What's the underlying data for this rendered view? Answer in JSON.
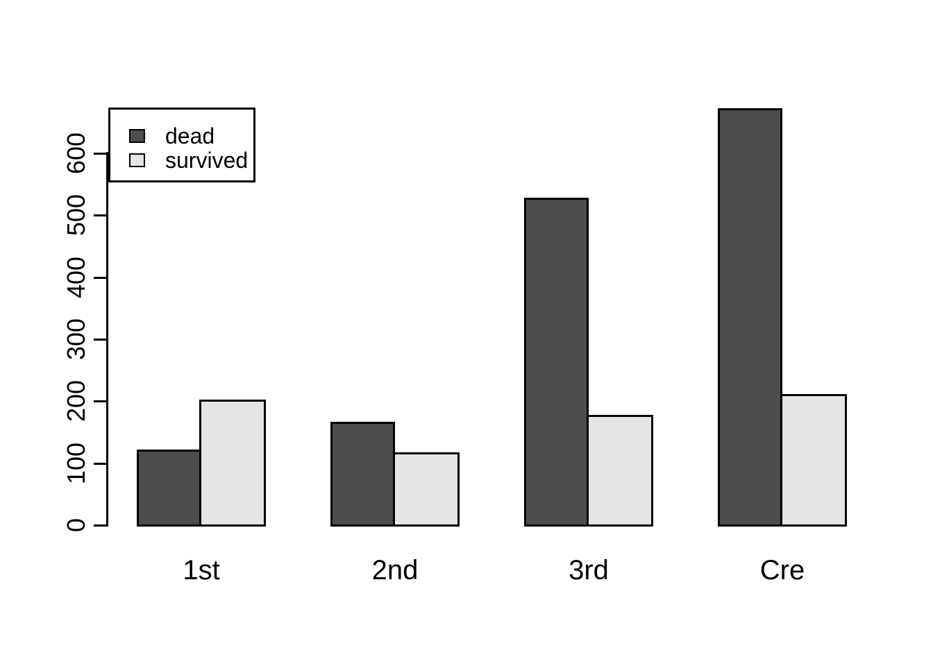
{
  "chart_data": {
    "type": "bar",
    "title": "",
    "xlabel": "",
    "ylabel": "",
    "categories": [
      "1st",
      "2nd",
      "3rd",
      "Cre"
    ],
    "series": [
      {
        "name": "dead",
        "color": "#4d4d4d",
        "values": [
          122,
          167,
          528,
          673
        ]
      },
      {
        "name": "survived",
        "color": "#e5e5e5",
        "values": [
          203,
          118,
          178,
          212
        ]
      }
    ],
    "ylim": [
      0,
      600
    ],
    "yticks": [
      0,
      100,
      200,
      300,
      400,
      500,
      600
    ],
    "grid": false,
    "legend_position": "topleft",
    "bar_border_color": "#000000",
    "background_color": "#ffffff"
  },
  "legend": {
    "items": [
      {
        "label": "dead"
      },
      {
        "label": "survived"
      }
    ]
  }
}
